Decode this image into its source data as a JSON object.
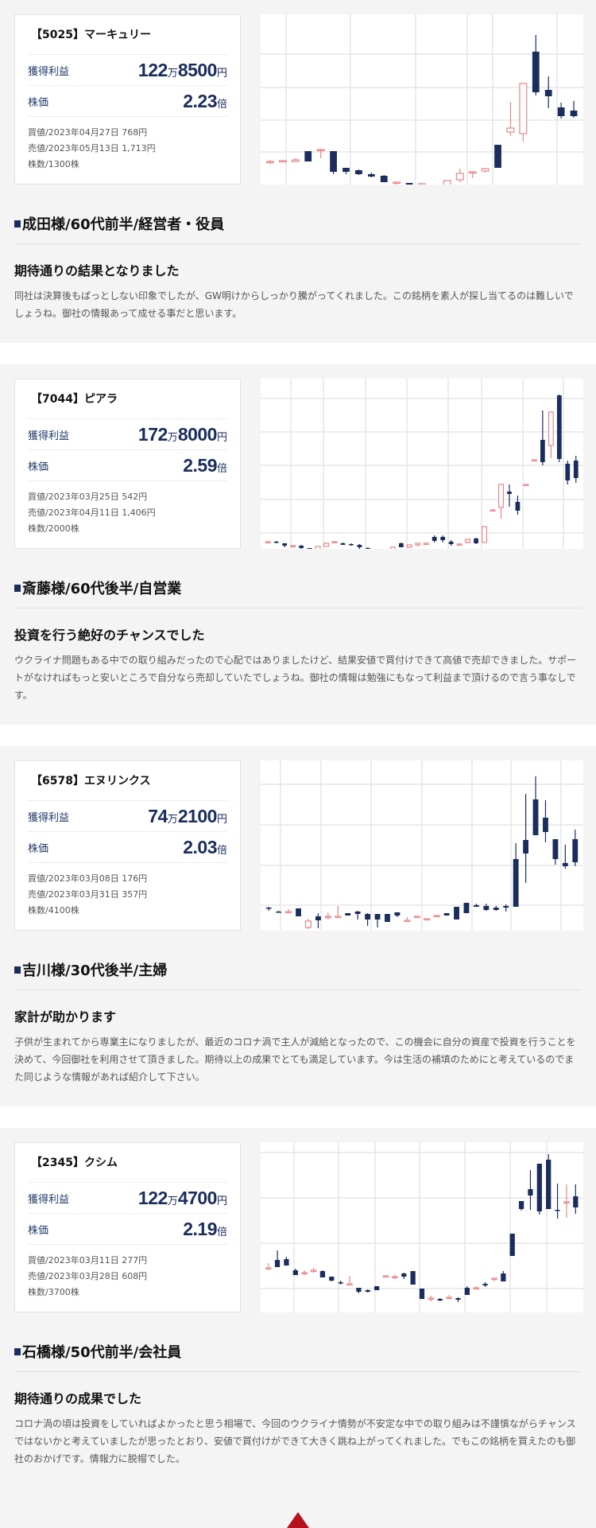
{
  "labels": {
    "profit": "獲得利益",
    "ratio": "株価",
    "man_unit": "万",
    "yen_unit": "円",
    "ratio_unit": "倍"
  },
  "colors": {
    "navy": "#1a2d5c",
    "bull_outline": "#e8868a",
    "grid": "#e6e6e6",
    "section_bg": "#f4f4f4",
    "page_top": "#b5121b"
  },
  "testimonials": [
    {
      "stock_title": "【5025】マーキュリー",
      "profit_man": "122",
      "profit_rest": "8500",
      "ratio": "2.23",
      "buy": "買値/2023年04月27日 768円",
      "sell": "売値/2023年05月13日 1,713円",
      "shares": "株数/1300株",
      "heading": "成田様/60代前半/経営者・役員",
      "review_title": "期待通りの結果となりました",
      "review_body": "同社は決算後もぱっとしない印象でしたが、GW明けからしっかり騰がってくれました。この銘柄を素人が探し当てるのは難しいでしょうね。御社の情報あって成せる事だと思います。"
    },
    {
      "stock_title": "【7044】ピアラ",
      "profit_man": "172",
      "profit_rest": "8000",
      "ratio": "2.59",
      "buy": "買値/2023年03月25日 542円",
      "sell": "売値/2023年04月11日 1,406円",
      "shares": "株数/2000株",
      "heading": "斎藤様/60代後半/自営業",
      "review_title": "投資を行う絶好のチャンスでした",
      "review_body": "ウクライナ問題もある中での取り組みだったので心配ではありましたけど、結果安値で買付けできて高値で売却できました。サポートがなければもっと安いところで自分なら売却していたでしょうね。御社の情報は勉強にもなって利益まで頂けるので言う事なしです。"
    },
    {
      "stock_title": "【6578】エヌリンクス",
      "profit_man": "74",
      "profit_rest": "2100",
      "ratio": "2.03",
      "buy": "買値/2023年03月08日 176円",
      "sell": "売値/2023年03月31日 357円",
      "shares": "株数/4100株",
      "heading": "吉川様/30代後半/主婦",
      "review_title": "家計が助かります",
      "review_body": "子供が生まれてから専業主になりましたが、最近のコロナ渦で主人が減給となったので、この機会に自分の資産で投資を行うことを決めて、今回御社を利用させて頂きました。期待以上の成果でとても満足しています。今は生活の補填のためにと考えているのでまた同じような情報があれば紹介して下さい。"
    },
    {
      "stock_title": "【2345】クシム",
      "profit_man": "122",
      "profit_rest": "4700",
      "ratio": "2.19",
      "buy": "買値/2023年03月11日 277円",
      "sell": "売値/2023年03月28日 608円",
      "shares": "株数/3700株",
      "heading": "石橋様/50代前半/会社員",
      "review_title": "期待通りの成果でした",
      "review_body": "コロナ渦の頃は投資をしていればよかったと思う相場で、今回のウクライナ情勢が不安定な中での取り組みは不謹慎ながらチャンスではないかと考えていましたが思ったとおり、安値で買付けができて大きく跳ね上がってくれました。でもこの銘柄を買えたのも御社のおかげです。情報力に脱帽でした。"
    }
  ],
  "chart_data": [
    {
      "type": "candlestick",
      "title": "【5025】マーキュリー",
      "note": "values are vertical positions in px from chart top (0-214), [open, close, high, low]",
      "hgrid": [
        50,
        92,
        133,
        173,
        215
      ],
      "vgrid": [
        32,
        113,
        195,
        260,
        292,
        373
      ],
      "candles": [
        [
          185,
          185,
          183,
          188
        ],
        [
          184,
          184,
          183,
          186
        ],
        [
          185,
          183,
          181,
          186
        ],
        [
          172,
          185,
          172,
          185
        ],
        [
          170,
          170,
          169,
          181
        ],
        [
          172,
          198,
          172,
          201
        ],
        [
          193,
          198,
          193,
          201
        ],
        [
          196,
          201,
          195,
          202
        ],
        [
          201,
          204,
          199,
          205
        ],
        [
          203,
          211,
          202,
          211
        ],
        [
          211,
          211,
          210,
          215
        ],
        [
          212,
          214,
          212,
          217
        ],
        [
          213,
          213,
          212,
          215
        ],
        [
          216,
          222,
          215,
          222
        ],
        [
          222,
          209,
          209,
          222
        ],
        [
          208,
          200,
          194,
          211
        ],
        [
          198,
          198,
          197,
          206
        ],
        [
          197,
          194,
          193,
          199
        ],
        [
          164,
          193,
          164,
          193
        ],
        [
          148,
          143,
          110,
          153
        ],
        [
          150,
          87,
          87,
          160
        ],
        [
          47,
          98,
          26,
          102
        ],
        [
          95,
          103,
          78,
          118
        ],
        [
          117,
          128,
          111,
          131
        ],
        [
          121,
          128,
          109,
          130
        ]
      ]
    },
    {
      "type": "candlestick",
      "title": "【7044】ピアラ",
      "hgrid": [
        25,
        67,
        109,
        152,
        194
      ],
      "vgrid": [
        38,
        79,
        132,
        184,
        236,
        278,
        330,
        381
      ],
      "candles": [
        [
          205,
          205,
          205,
          205
        ],
        [
          205,
          206,
          204,
          207
        ],
        [
          207,
          210,
          207,
          212
        ],
        [
          210,
          210,
          209,
          211
        ],
        [
          210,
          213,
          209,
          214
        ],
        [
          213,
          217,
          213,
          220
        ],
        [
          219,
          211,
          211,
          220
        ],
        [
          211,
          207,
          206,
          211
        ],
        [
          206,
          205,
          204,
          207
        ],
        [
          207,
          209,
          206,
          209
        ],
        [
          208,
          209,
          207,
          210
        ],
        [
          209,
          212,
          208,
          214
        ],
        [
          213,
          215,
          212,
          216
        ],
        [
          216,
          217,
          215,
          218
        ],
        [
          217,
          219,
          216,
          219
        ],
        [
          217,
          212,
          212,
          217
        ],
        [
          207,
          212,
          206,
          212
        ],
        [
          212,
          209,
          209,
          212
        ],
        [
          209,
          207,
          207,
          211
        ],
        [
          207,
          207,
          206,
          208
        ],
        [
          199,
          204,
          197,
          206
        ],
        [
          199,
          203,
          197,
          206
        ],
        [
          205,
          208,
          203,
          210
        ],
        [
          208,
          208,
          207,
          209
        ],
        [
          206,
          202,
          202,
          207
        ],
        [
          201,
          207,
          200,
          208
        ],
        [
          206,
          186,
          186,
          206
        ],
        [
          165,
          165,
          165,
          165
        ],
        [
          162,
          133,
          133,
          176
        ],
        [
          142,
          145,
          133,
          161
        ],
        [
          155,
          166,
          147,
          171
        ],
        [
          133,
          133,
          133,
          133
        ],
        [
          102,
          102,
          102,
          103
        ],
        [
          77,
          105,
          40,
          109
        ],
        [
          84,
          42,
          42,
          100
        ],
        [
          21,
          101,
          20,
          105
        ],
        [
          107,
          128,
          103,
          133
        ],
        [
          103,
          125,
          97,
          131
        ]
      ]
    },
    {
      "type": "candlestick",
      "title": "【6578】エヌリンクス",
      "hgrid": [
        30,
        81,
        132,
        182
      ],
      "vgrid": [
        25,
        76,
        139,
        203,
        266,
        315,
        378
      ],
      "candles": [
        [
          185,
          186,
          184,
          189
        ],
        [
          190,
          191,
          189,
          191
        ],
        [
          190,
          190,
          187,
          191
        ],
        [
          186,
          196,
          186,
          196
        ],
        [
          210,
          202,
          199,
          212
        ],
        [
          196,
          201,
          192,
          211
        ],
        [
          196,
          196,
          191,
          200
        ],
        [
          196,
          196,
          183,
          197
        ],
        [
          192,
          195,
          192,
          195
        ],
        [
          190,
          193,
          189,
          200
        ],
        [
          193,
          200,
          192,
          208
        ],
        [
          193,
          200,
          193,
          210
        ],
        [
          193,
          203,
          193,
          203
        ],
        [
          191,
          195,
          191,
          197
        ],
        [
          201,
          201,
          197,
          201
        ],
        [
          196,
          196,
          195,
          197
        ],
        [
          199,
          199,
          199,
          200
        ],
        [
          195,
          195,
          194,
          197
        ],
        [
          192,
          195,
          192,
          195
        ],
        [
          184,
          200,
          184,
          200
        ],
        [
          179,
          192,
          179,
          192
        ],
        [
          182,
          184,
          180,
          184
        ],
        [
          183,
          188,
          180,
          189
        ],
        [
          185,
          188,
          183,
          189
        ],
        [
          183,
          185,
          181,
          190
        ],
        [
          124,
          184,
          104,
          184
        ],
        [
          100,
          117,
          42,
          154
        ],
        [
          49,
          94,
          20,
          94
        ],
        [
          72,
          90,
          50,
          103
        ],
        [
          99,
          124,
          99,
          131
        ],
        [
          129,
          133,
          106,
          136
        ],
        [
          99,
          128,
          87,
          133
        ]
      ]
    },
    {
      "type": "candlestick",
      "title": "【2345】クシム",
      "hgrid": [
        13,
        70,
        127,
        184
      ],
      "vgrid": [
        42,
        98,
        144,
        200,
        257,
        314,
        360
      ],
      "candles": [
        [
          158,
          158,
          152,
          160
        ],
        [
          148,
          157,
          136,
          157
        ],
        [
          147,
          155,
          144,
          155
        ],
        [
          161,
          167,
          159,
          167
        ],
        [
          164,
          164,
          161,
          167
        ],
        [
          161,
          161,
          158,
          164
        ],
        [
          162,
          170,
          161,
          170
        ],
        [
          169,
          174,
          169,
          175
        ],
        [
          176,
          177,
          174,
          179
        ],
        [
          178,
          178,
          168,
          180
        ],
        [
          183,
          188,
          183,
          190
        ],
        [
          186,
          188,
          185,
          189
        ],
        [
          181,
          186,
          181,
          186
        ],
        [
          169,
          168,
          167,
          170
        ],
        [
          169,
          169,
          166,
          172
        ],
        [
          165,
          169,
          164,
          172
        ],
        [
          162,
          179,
          162,
          179
        ],
        [
          184,
          197,
          184,
          197
        ],
        [
          196,
          196,
          193,
          200
        ],
        [
          197,
          199,
          196,
          200
        ],
        [
          195,
          195,
          192,
          197
        ],
        [
          196,
          198,
          195,
          201
        ],
        [
          183,
          192,
          181,
          192
        ],
        [
          183,
          183,
          181,
          185
        ],
        [
          178,
          180,
          176,
          182
        ],
        [
          171,
          171,
          170,
          175
        ],
        [
          165,
          175,
          162,
          175
        ],
        [
          115,
          143,
          115,
          143
        ],
        [
          74,
          84,
          74,
          86
        ],
        [
          59,
          67,
          35,
          85
        ],
        [
          27,
          87,
          27,
          91
        ],
        [
          22,
          84,
          15,
          84
        ],
        [
          85,
          86,
          52,
          96
        ],
        [
          75,
          75,
          53,
          95
        ],
        [
          68,
          82,
          53,
          90
        ]
      ]
    }
  ],
  "page_top": {
    "icon": "triangle-up-icon"
  }
}
